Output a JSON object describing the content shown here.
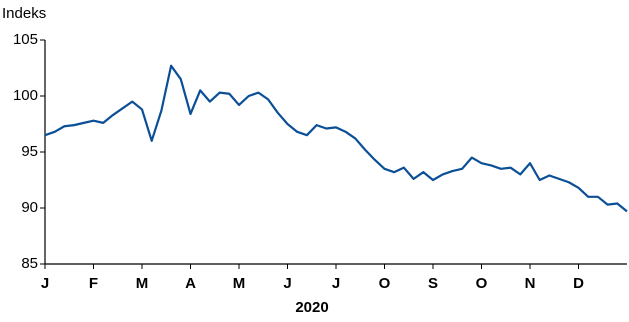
{
  "chart_data": {
    "type": "line",
    "y_label": "Indeks",
    "x_label": "2020",
    "categories": [
      "J",
      null,
      null,
      null,
      null,
      "F",
      null,
      null,
      null,
      null,
      "M",
      null,
      null,
      null,
      null,
      "A",
      null,
      null,
      null,
      null,
      "M",
      null,
      null,
      null,
      null,
      "J",
      null,
      null,
      null,
      null,
      "J",
      null,
      null,
      null,
      null,
      "O",
      null,
      null,
      null,
      null,
      "S",
      null,
      null,
      null,
      null,
      "O",
      null,
      null,
      null,
      null,
      "N",
      null,
      null,
      null,
      null,
      "D",
      null,
      null,
      null,
      null,
      null
    ],
    "series": [
      {
        "color": "#0b4f96",
        "values": [
          96.5,
          96.8,
          97.3,
          97.4,
          97.6,
          97.8,
          97.6,
          98.3,
          98.9,
          99.5,
          98.8,
          96.0,
          98.7,
          102.7,
          101.5,
          98.4,
          100.5,
          99.5,
          100.3,
          100.2,
          99.2,
          100.0,
          100.3,
          99.7,
          98.5,
          97.5,
          96.8,
          96.5,
          97.4,
          97.1,
          97.2,
          96.8,
          96.2,
          95.2,
          94.3,
          93.5,
          93.2,
          93.6,
          92.6,
          93.2,
          92.5,
          93.0,
          93.3,
          93.5,
          94.5,
          94.0,
          93.8,
          93.5,
          93.6,
          93.0,
          94.0,
          92.5,
          92.9,
          92.6,
          92.3,
          91.8,
          91.0,
          91.0,
          90.3,
          90.4,
          89.7
        ]
      }
    ],
    "ylim": [
      85,
      105
    ],
    "yticks": [
      85,
      90,
      95,
      100,
      105
    ],
    "grid": false
  }
}
